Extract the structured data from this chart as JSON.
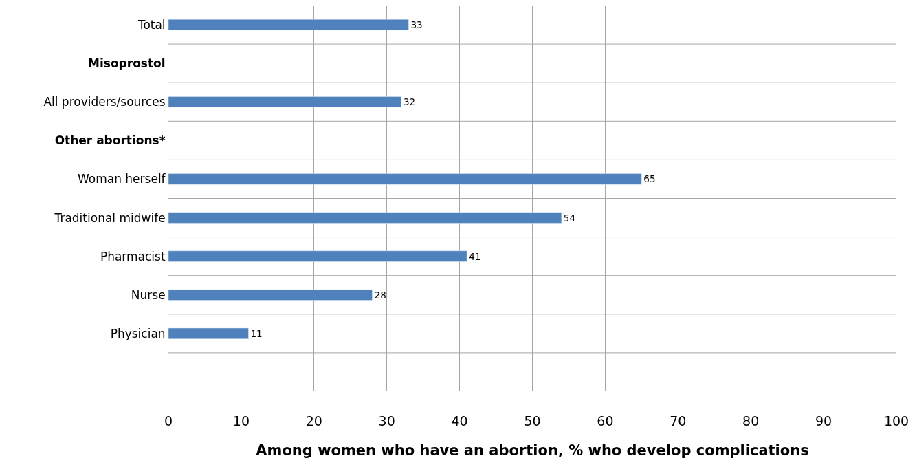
{
  "chart_data": {
    "type": "bar",
    "orientation": "horizontal",
    "xlabel": "Among women who have an abortion, % who develop complications",
    "categories": [
      "Total",
      "Misoprostol",
      "All providers/sources",
      "Other abortions*",
      "Woman herself",
      "Traditional midwife",
      "Pharmacist",
      "Nurse",
      "Physician",
      null
    ],
    "values": [
      33,
      null,
      32,
      null,
      65,
      54,
      41,
      28,
      11,
      null
    ],
    "color": "#4f81bd",
    "data_labels": true,
    "grid": true,
    "legend": false,
    "xlim": [
      0,
      100
    ],
    "xticks": [
      0,
      10,
      20,
      30,
      40,
      50,
      60,
      70,
      80,
      90,
      100
    ]
  }
}
